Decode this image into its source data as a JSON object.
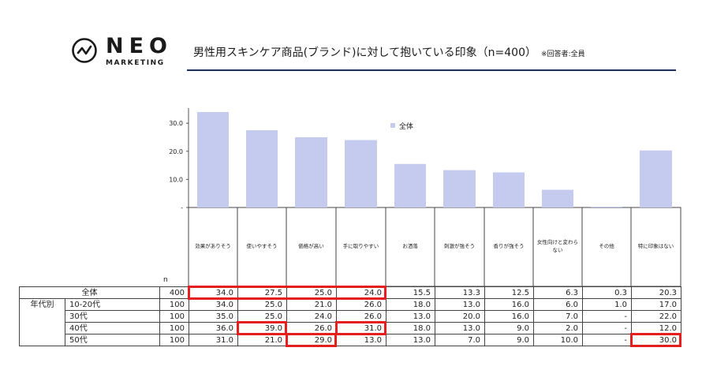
{
  "logo": {
    "name": "NEO",
    "sub": "MARKETING"
  },
  "title": "男性用スキンケア商品(ブランド)に対して抱いている印象（n=400）",
  "title_note": "※回答者:全員",
  "colors": {
    "bar": "#c5cbef",
    "highlight": "#e51e1e",
    "rule": "#1f2d5a"
  },
  "chart_data": {
    "type": "bar",
    "title": "男性用スキンケア商品(ブランド)に対して抱いている印象（n=400）",
    "categories": [
      "効果がありそう",
      "使いやすそう",
      "価格が高い",
      "手に取りやすい",
      "お洒落",
      "刺激が強そう",
      "香りが強そう",
      "女性向けと変わらない",
      "その他",
      "特に印象はない"
    ],
    "series": [
      {
        "name": "全体",
        "values": [
          34.0,
          27.5,
          25.0,
          24.0,
          15.5,
          13.3,
          12.5,
          6.3,
          0.3,
          20.3
        ]
      }
    ],
    "y_ticks": [
      "-",
      "10.0",
      "20.0",
      "30.0"
    ],
    "ylim": [
      0,
      40
    ],
    "legend_position": "top-right",
    "n_label": "n",
    "table": {
      "group_label": "年代別",
      "rows": [
        {
          "label": "全体",
          "n": "400",
          "values": [
            "34.0",
            "27.5",
            "25.0",
            "24.0",
            "15.5",
            "13.3",
            "12.5",
            "6.3",
            "0.3",
            "20.3"
          ]
        },
        {
          "label": "10-20代",
          "n": "100",
          "values": [
            "34.0",
            "25.0",
            "21.0",
            "26.0",
            "18.0",
            "13.0",
            "16.0",
            "6.0",
            "1.0",
            "17.0"
          ]
        },
        {
          "label": "30代",
          "n": "100",
          "values": [
            "35.0",
            "25.0",
            "24.0",
            "26.0",
            "13.0",
            "20.0",
            "16.0",
            "7.0",
            "-",
            "22.0"
          ]
        },
        {
          "label": "40代",
          "n": "100",
          "values": [
            "36.0",
            "39.0",
            "26.0",
            "31.0",
            "18.0",
            "13.0",
            "9.0",
            "2.0",
            "-",
            "12.0"
          ]
        },
        {
          "label": "50代",
          "n": "100",
          "values": [
            "31.0",
            "21.0",
            "29.0",
            "13.0",
            "13.0",
            "7.0",
            "9.0",
            "10.0",
            "-",
            "30.0"
          ]
        }
      ]
    }
  }
}
